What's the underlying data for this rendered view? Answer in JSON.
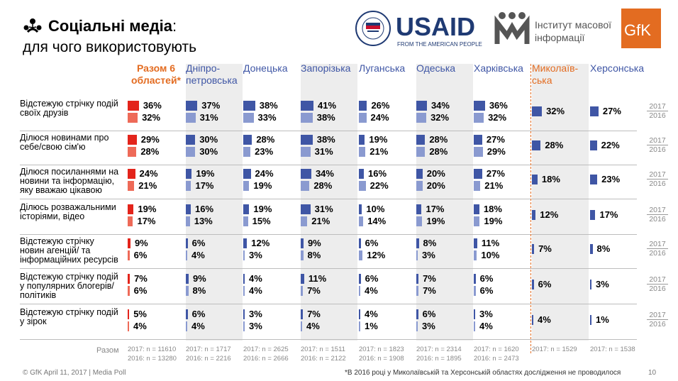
{
  "title": {
    "bold": "Соціальні медіа",
    "colon": ":",
    "subtitle": "для чого використовують"
  },
  "logos": {
    "usaid": "USAID",
    "usaid_tagline": "FROM THE AMERICAN PEOPLE",
    "imi_line1": "Інститут масової",
    "imi_line2": "інформації",
    "gfk": "GfK"
  },
  "colors": {
    "accent": "#e36c21",
    "red2017": "#e3241b",
    "red2016": "#ee6a58",
    "blue2017": "#3f56a5",
    "blue2016": "#8a9ad0"
  },
  "years": {
    "y2017": "2017",
    "y2016": "2016"
  },
  "base_label": "Разом",
  "footer": {
    "left": "© GfK April 11, 2017 | Media Poll",
    "note": "*В 2016 році у Миколаївській та Херсонській областях дослідження не проводилося",
    "page": "10"
  },
  "chart_data": {
    "type": "bar",
    "unit": "%",
    "columns": [
      "Разом 6 областей*",
      "Дніпро-петровська",
      "Донецька",
      "Запорізька",
      "Луганська",
      "Одеська",
      "Харківська",
      "Миколаїв-ська",
      "Херсонська"
    ],
    "rows": [
      {
        "label": "Відстежую стрічку подій своїх друзів",
        "v2017": [
          36,
          37,
          38,
          41,
          26,
          34,
          36,
          32,
          27
        ],
        "v2016": [
          32,
          31,
          33,
          38,
          24,
          32,
          32,
          null,
          null
        ]
      },
      {
        "label": "Ділюся новинами про себе/свою сім'ю",
        "v2017": [
          29,
          30,
          28,
          38,
          19,
          28,
          27,
          28,
          22
        ],
        "v2016": [
          28,
          30,
          23,
          31,
          21,
          28,
          29,
          null,
          null
        ]
      },
      {
        "label": "Ділюся посиланнями на новини та інформацію, яку вважаю цікавою",
        "v2017": [
          24,
          19,
          24,
          34,
          16,
          20,
          27,
          18,
          23
        ],
        "v2016": [
          21,
          17,
          19,
          28,
          22,
          20,
          21,
          null,
          null
        ]
      },
      {
        "label": "Ділюсь розважальними історіями, відео",
        "v2017": [
          19,
          16,
          19,
          31,
          10,
          17,
          18,
          12,
          17
        ],
        "v2016": [
          17,
          13,
          15,
          21,
          14,
          19,
          19,
          null,
          null
        ]
      },
      {
        "label": "Відстежую стрічку новин агенцій/ та інформаційних ресурсів",
        "v2017": [
          9,
          6,
          12,
          9,
          6,
          8,
          11,
          7,
          8
        ],
        "v2016": [
          6,
          4,
          3,
          8,
          12,
          3,
          10,
          null,
          null
        ]
      },
      {
        "label": "Відстежую стрічку подій у популярних блогерів/політиків",
        "v2017": [
          7,
          9,
          4,
          11,
          6,
          7,
          6,
          6,
          3
        ],
        "v2016": [
          6,
          8,
          4,
          7,
          4,
          7,
          6,
          null,
          null
        ]
      },
      {
        "label": "Відстежую стрічку подій у зірок",
        "v2017": [
          5,
          6,
          3,
          7,
          4,
          6,
          3,
          4,
          1
        ],
        "v2016": [
          4,
          4,
          3,
          4,
          1,
          3,
          4,
          null,
          null
        ]
      }
    ],
    "base_2017": [
      "2017: n = 11610",
      "2017: n = 1717",
      "2017: n = 2625",
      "2017: n = 1511",
      "2017: n = 1823",
      "2017: n = 2314",
      "2017: n = 1620",
      "2017: n = 1529",
      "2017: n = 1538"
    ],
    "base_2016": [
      "2016: n = 13280",
      "2016: n = 2216",
      "2016: n = 2666",
      "2016: n = 2122",
      "2016: n = 1908",
      "2016: n = 1895",
      "2016: n = 2473",
      "",
      ""
    ]
  }
}
